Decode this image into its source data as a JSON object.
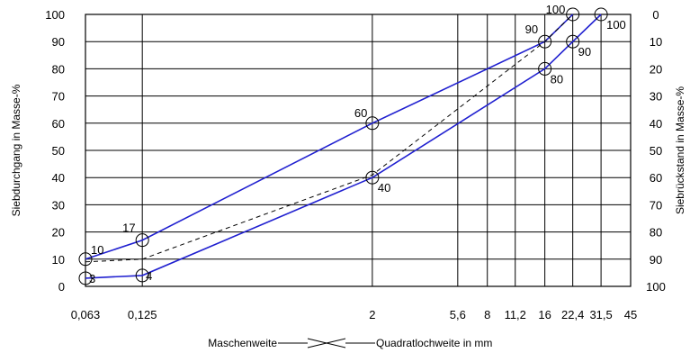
{
  "chart_data": {
    "type": "line",
    "ylabel_left": "Siebdurchgang in Masse-%",
    "ylabel_right": "Siebrückstand in Masse-%",
    "xlabel_left": "Maschenweite",
    "xlabel_right": "Quadratlochweite in mm",
    "x_ticks": [
      "0,063",
      "0,125",
      "2",
      "5,6",
      "8",
      "11,2",
      "16",
      "22,4",
      "31,5",
      "45"
    ],
    "x_tick_values": [
      0.063,
      0.125,
      2,
      5.6,
      8,
      11.2,
      16,
      22.4,
      31.5,
      45
    ],
    "y_left_ticks": [
      "0",
      "10",
      "20",
      "30",
      "40",
      "50",
      "60",
      "70",
      "80",
      "90",
      "100"
    ],
    "y_right_ticks": [
      "100",
      "90",
      "80",
      "70",
      "60",
      "50",
      "40",
      "30",
      "20",
      "10",
      "0"
    ],
    "ylim": [
      0,
      100
    ],
    "grid": true,
    "series": [
      {
        "x": [
          0.063,
          0.125,
          2,
          16,
          22.4
        ],
        "values": [
          10,
          17,
          60,
          90,
          100
        ],
        "labels": [
          "10",
          "17",
          "60",
          "90",
          "100"
        ]
      },
      {
        "x": [
          0.063,
          0.125,
          2,
          16,
          22.4,
          31.5
        ],
        "values": [
          3,
          4,
          40,
          80,
          90,
          100
        ],
        "labels": [
          "3",
          "4",
          "40",
          "80",
          "90",
          "100"
        ]
      },
      {
        "x": [
          0.063,
          0.125,
          2,
          16,
          22.4
        ],
        "values": [
          9,
          10,
          41,
          90,
          100
        ],
        "labels": []
      }
    ]
  }
}
